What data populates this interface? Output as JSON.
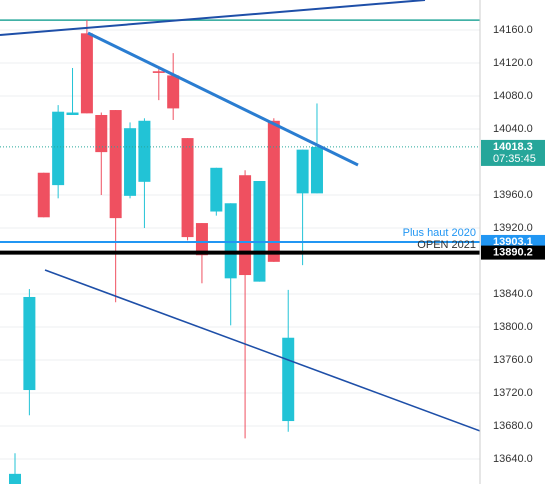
{
  "chart_data": {
    "type": "candlestick",
    "up_color": "#22c3d6",
    "down_color": "#ef5060",
    "grid": true,
    "ylim": [
      13609.7,
      14196.4
    ],
    "yticks": [
      {
        "value": 14160,
        "label": "14160.0"
      },
      {
        "value": 14120,
        "label": "14120.0"
      },
      {
        "value": 14080,
        "label": "14080.0"
      },
      {
        "value": 14040,
        "label": "14040.0"
      },
      {
        "value": 13960,
        "label": "13960.0"
      },
      {
        "value": 13920,
        "label": "13920.0"
      },
      {
        "value": 13840,
        "label": "13840.0"
      },
      {
        "value": 13800,
        "label": "13800.0"
      },
      {
        "value": 13760,
        "label": "13760.0"
      },
      {
        "value": 13720,
        "label": "13720.0"
      },
      {
        "value": 13680,
        "label": "13680.0"
      },
      {
        "value": 13640,
        "label": "13640.0"
      }
    ],
    "open": [
      13600,
      13723.6,
      13987,
      13972,
      14057,
      14156,
      14057,
      14063,
      13959,
      13976,
      14110,
      14105,
      14029,
      13926,
      13940,
      13859,
      13984,
      13855,
      14050,
      13686,
      13962,
      13962
    ],
    "high": [
      13647,
      13846,
      13987,
      14069,
      14114,
      14172,
      14060,
      14063,
      14048,
      14053,
      14114,
      14132,
      14029,
      13926,
      13993,
      13950,
      13990,
      13977,
      14053,
      13845,
      14015,
      14071
    ],
    "low": [
      13600,
      13693,
      13933,
      13956,
      14057,
      14059,
      13960,
      13830,
      13956,
      13920,
      14075,
      14051,
      13905,
      13853,
      13935,
      13802,
      13665,
      13855,
      13879,
      13673,
      13875,
      13962
    ],
    "close": [
      13622,
      13836.4,
      13933,
      14061,
      14060,
      14059,
      14012,
      13932,
      14041,
      14050,
      14108,
      14065,
      13909,
      13887,
      13993,
      13950,
      13863,
      13977,
      13879,
      13787,
      14015,
      14018.3
    ],
    "hlines": [
      {
        "value": 14172,
        "color": "#26a69a"
      }
    ],
    "price_labels": [
      {
        "value": 14018.3,
        "time": "07:35:45",
        "color": "#26a69a"
      },
      {
        "value": 13903.1,
        "color": "#2196f3"
      },
      {
        "value": 13890.2,
        "color": "#000000"
      }
    ],
    "annotations": [
      "Plus haut 2020",
      "OPEN 2021"
    ]
  }
}
